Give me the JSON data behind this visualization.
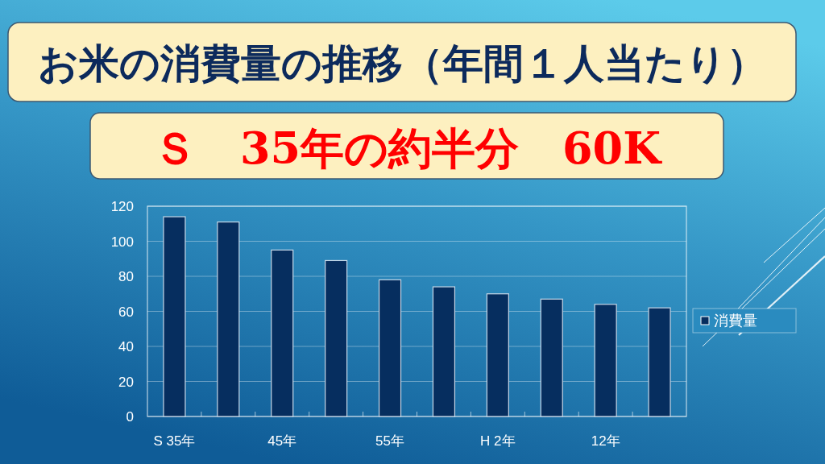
{
  "chart_data": {
    "type": "bar",
    "title": "お米の消費量の推移（年間１人当たり）",
    "subtitle": "Ｓ　35年の約半分　60K",
    "categories": [
      "S 35年",
      null,
      "45年",
      null,
      "55年",
      null,
      "H 2年",
      null,
      "12年",
      null
    ],
    "series": [
      {
        "name": "消費量",
        "color": "#062e5f",
        "values": [
          114,
          111,
          95,
          89,
          78,
          74,
          70,
          67,
          64,
          62
        ]
      }
    ],
    "ylim": [
      0,
      120
    ],
    "yticks": [
      0,
      20,
      40,
      60,
      80,
      100,
      120
    ],
    "grid": "y",
    "legend": "right"
  }
}
